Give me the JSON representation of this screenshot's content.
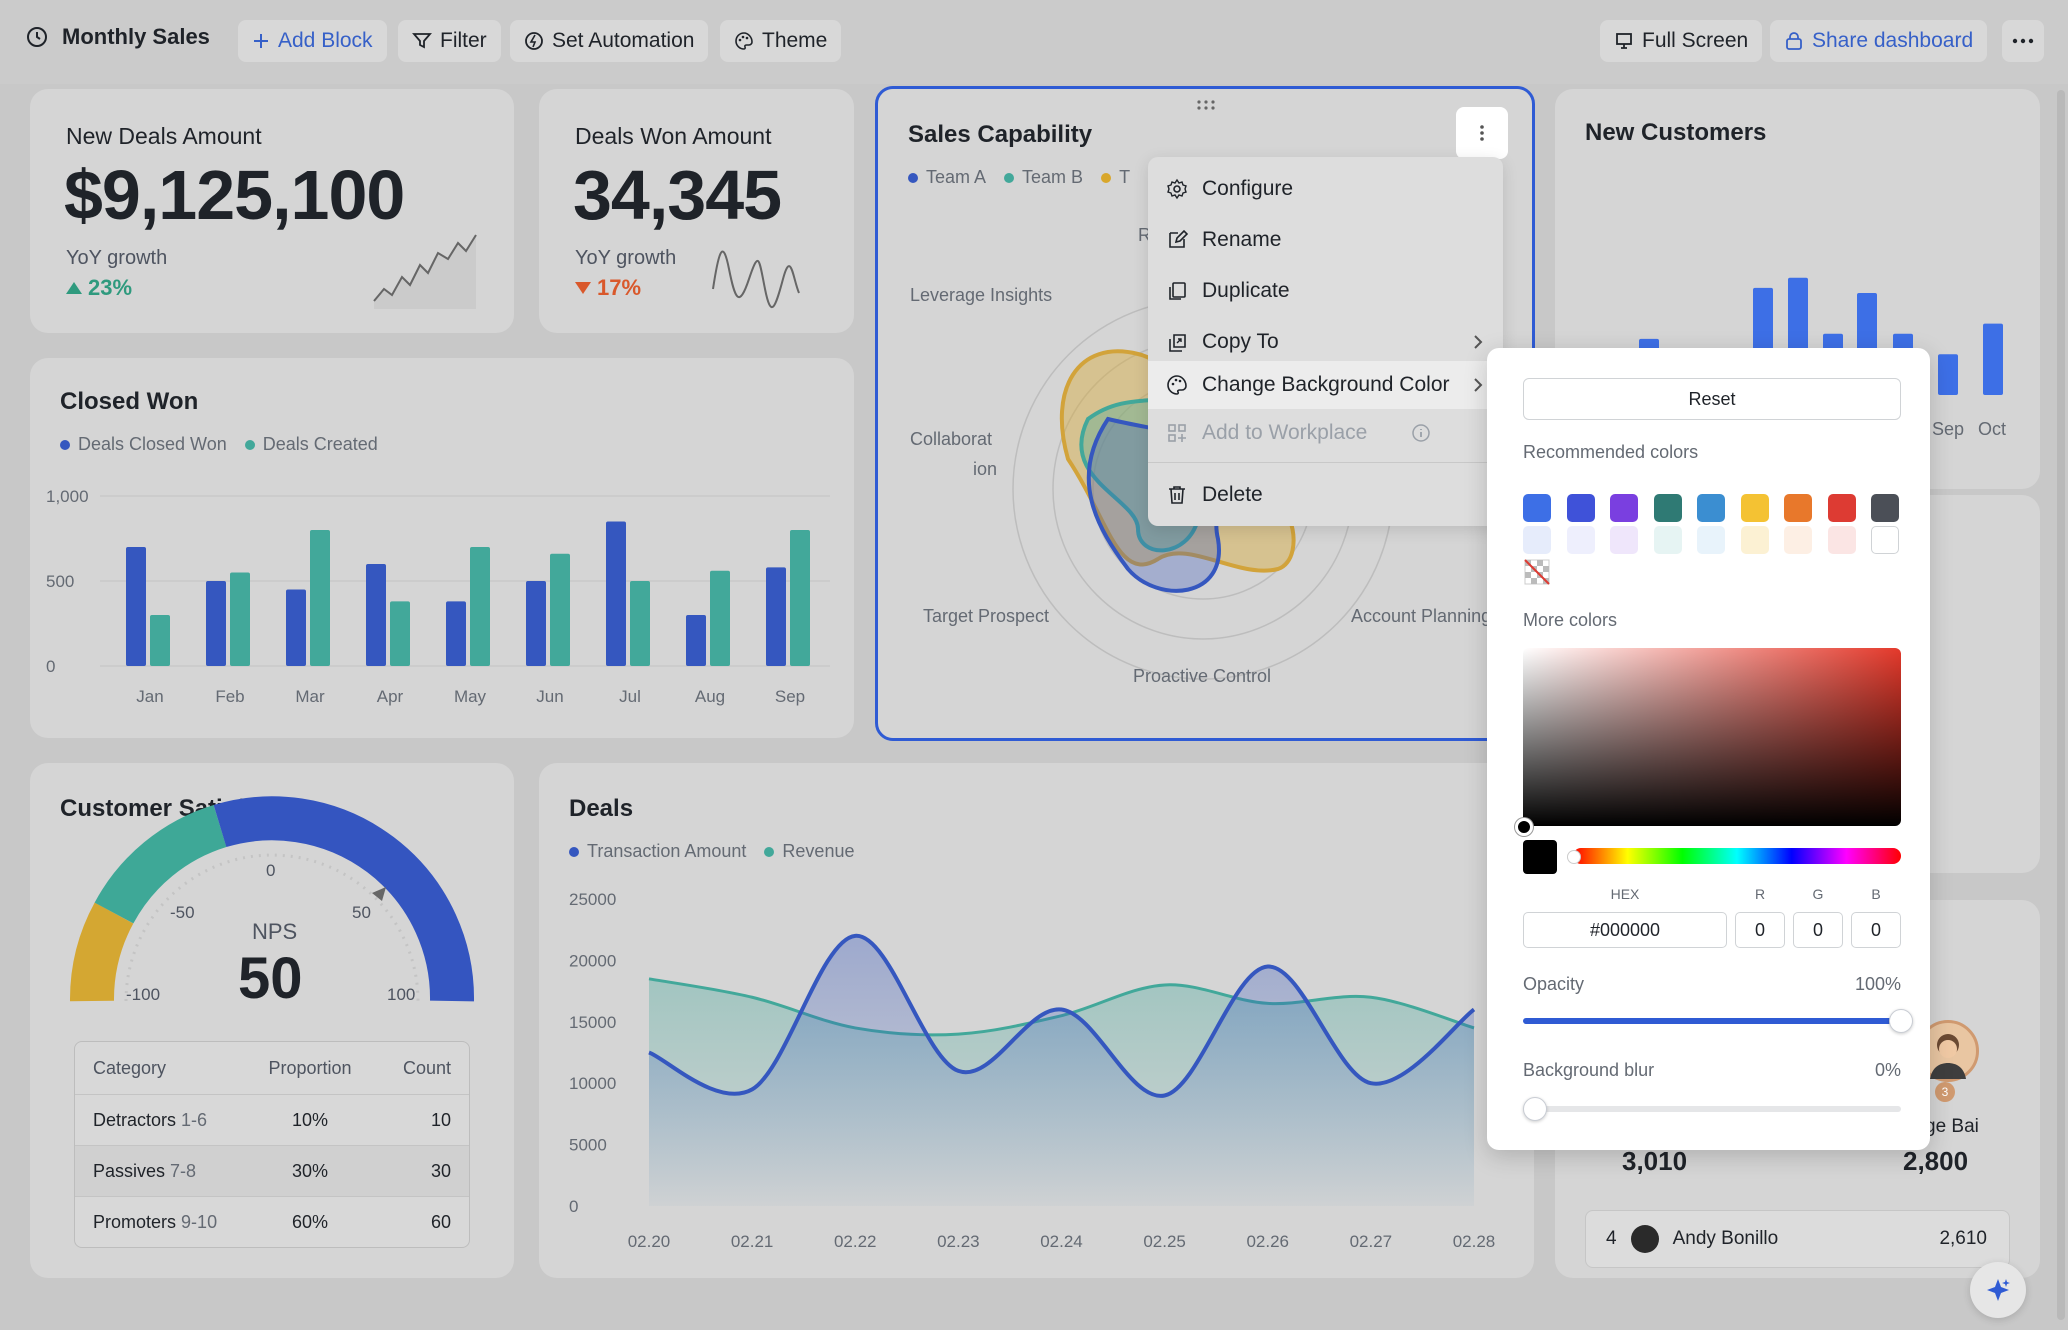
{
  "toolbar": {
    "title": "Monthly Sales",
    "add_block": "Add Block",
    "filter": "Filter",
    "set_automation": "Set Automation",
    "theme": "Theme",
    "full_screen": "Full Screen",
    "share": "Share dashboard"
  },
  "new_deals": {
    "label": "New Deals Amount",
    "value": "$9,125,100",
    "yoy_label": "YoY growth",
    "yoy": "23%"
  },
  "deals_won": {
    "label": "Deals Won Amount",
    "value": "34,345",
    "yoy_label": "YoY growth",
    "yoy": "17%"
  },
  "sales_capability": {
    "title": "Sales Capability",
    "legend": [
      "Team A",
      "Team B",
      "T"
    ],
    "axes": [
      "Leverage Insights",
      "Collaborat",
      "ion",
      "Target Prospect",
      "Proactive Control",
      "Account Planning",
      "R"
    ]
  },
  "context_menu": {
    "configure": "Configure",
    "rename": "Rename",
    "duplicate": "Duplicate",
    "copy_to": "Copy To",
    "change_bg": "Change Background Color",
    "add_workplace": "Add to Workplace",
    "delete": "Delete"
  },
  "color_panel": {
    "reset": "Reset",
    "recommended": "Recommended colors",
    "more": "More colors",
    "hex_label": "HEX",
    "r_label": "R",
    "g_label": "G",
    "b_label": "B",
    "hex": "#000000",
    "r": "0",
    "g": "0",
    "b": "0",
    "opacity_label": "Opacity",
    "opacity": "100%",
    "blur_label": "Background blur",
    "blur": "0%",
    "swatches_dark": [
      "#3d6fe6",
      "#3f52d9",
      "#7a3fe0",
      "#2f7a74",
      "#3b8ed1",
      "#f4c233",
      "#e8782b",
      "#dd3b33",
      "#4b4f57"
    ],
    "swatches_light": [
      "#e6ecfb",
      "#eeeffd",
      "#efe6fb",
      "#e6f4f3",
      "#e8f3fb",
      "#fcf1d3",
      "#fdefe4",
      "#fbe5e4",
      "#ffffff"
    ]
  },
  "new_customers": {
    "title": "New Customers",
    "x_labels": [
      "Sep",
      "Oct"
    ]
  },
  "closed_won": {
    "title": "Closed Won",
    "legend": [
      "Deals Closed Won",
      "Deals Created"
    ]
  },
  "customer_satisfaction": {
    "title": "Customer Satisfaction",
    "nps_label": "NPS",
    "nps": "50",
    "ticks": [
      "0",
      "-50",
      "50",
      "-100",
      "100"
    ],
    "table": {
      "headers": [
        "Category",
        "Proportion",
        "Count"
      ],
      "rows": [
        {
          "name": "Detractors",
          "range": "1-6",
          "proportion": "10%",
          "count": "10"
        },
        {
          "name": "Passives",
          "range": "7-8",
          "proportion": "30%",
          "count": "30"
        },
        {
          "name": "Promoters",
          "range": "9-10",
          "proportion": "60%",
          "count": "60"
        }
      ]
    }
  },
  "deals": {
    "title": "Deals",
    "legend": [
      "Transaction Amount",
      "Revenue"
    ]
  },
  "leaderboard": {
    "name_partial": "ge Bai",
    "val_left": "3,010",
    "val_right": "2,800",
    "row": {
      "rank": "4",
      "name": "Andy Bonillo",
      "value": "2,610"
    },
    "badge": "3"
  },
  "chart_data": [
    {
      "type": "bar",
      "title": "Closed Won",
      "categories": [
        "Jan",
        "Feb",
        "Mar",
        "Apr",
        "May",
        "Jun",
        "Jul",
        "Aug",
        "Sep"
      ],
      "series": [
        {
          "name": "Deals Closed Won",
          "values": [
            700,
            500,
            450,
            600,
            380,
            500,
            850,
            300,
            580
          ]
        },
        {
          "name": "Deals Created",
          "values": [
            300,
            550,
            800,
            380,
            700,
            660,
            500,
            560,
            800
          ]
        }
      ],
      "ylim": [
        0,
        1000
      ],
      "yticks": [
        "0",
        "500",
        "1,000"
      ],
      "colors": [
        "#3557bf",
        "#42a89a"
      ]
    },
    {
      "type": "area",
      "title": "Deals",
      "categories": [
        "02.20",
        "02.21",
        "02.22",
        "02.23",
        "02.24",
        "02.25",
        "02.26",
        "02.27",
        "02.28"
      ],
      "series": [
        {
          "name": "Transaction Amount",
          "values": [
            12500,
            9500,
            22000,
            11000,
            16000,
            9000,
            19500,
            10000,
            16000
          ]
        },
        {
          "name": "Revenue",
          "values": [
            18500,
            17000,
            14500,
            14000,
            15500,
            18000,
            16500,
            17000,
            14500
          ]
        }
      ],
      "ylim": [
        0,
        25000
      ],
      "yticks": [
        "0",
        "5000",
        "10000",
        "15000",
        "20000",
        "25000"
      ],
      "colors": [
        "#3557bf",
        "#42a89a"
      ]
    },
    {
      "type": "bar",
      "title": "New Customers",
      "categories": [
        "",
        "",
        "",
        "",
        "",
        "",
        "",
        "",
        "Sep",
        "Oct"
      ],
      "values": [
        55,
        20,
        45,
        105,
        115,
        60,
        100,
        60,
        40,
        70
      ],
      "colors": [
        "#3d6fe6"
      ]
    }
  ]
}
